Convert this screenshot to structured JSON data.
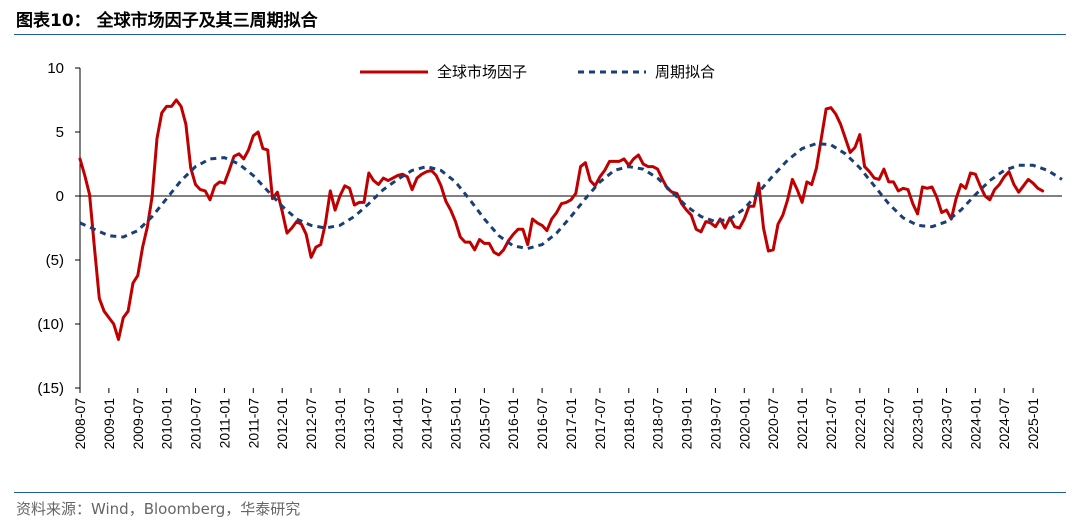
{
  "header": {
    "title": "图表10：  全球市场因子及其三周期拟合"
  },
  "footer": {
    "source": "资料来源：Wind，Bloomberg，华泰研究"
  },
  "chart_data": {
    "type": "line",
    "title": "",
    "xlabel": "",
    "ylabel": "",
    "ylim": [
      -15,
      10
    ],
    "yticks": [
      10,
      5,
      0,
      -5,
      -10,
      -15
    ],
    "ytick_labels": [
      "10",
      "5",
      "0",
      "(5)",
      "(10)",
      "(15)"
    ],
    "xlim": [
      "2008-07",
      "2025-07"
    ],
    "xtick_labels": [
      "2008-07",
      "2009-01",
      "2009-07",
      "2010-01",
      "2010-07",
      "2011-01",
      "2011-07",
      "2012-01",
      "2012-07",
      "2013-01",
      "2013-07",
      "2014-01",
      "2014-07",
      "2015-01",
      "2015-07",
      "2016-01",
      "2016-07",
      "2017-01",
      "2017-07",
      "2018-01",
      "2018-07",
      "2019-01",
      "2019-07",
      "2020-01",
      "2020-07",
      "2021-01",
      "2021-07",
      "2022-01",
      "2022-07",
      "2023-01",
      "2023-07",
      "2024-01",
      "2024-07",
      "2025-01"
    ],
    "legend_position": "top",
    "series": [
      {
        "name": "全球市场因子",
        "color": "#c00000",
        "style": "solid",
        "points": [
          [
            "2008-07",
            2.9
          ],
          [
            "2008-08",
            1.6
          ],
          [
            "2008-09",
            0.1
          ],
          [
            "2008-10",
            -4.0
          ],
          [
            "2008-11",
            -8.0
          ],
          [
            "2008-12",
            -9.0
          ],
          [
            "2009-01",
            -9.5
          ],
          [
            "2009-02",
            -10.0
          ],
          [
            "2009-03",
            -11.2
          ],
          [
            "2009-04",
            -9.5
          ],
          [
            "2009-05",
            -9.0
          ],
          [
            "2009-06",
            -6.8
          ],
          [
            "2009-07",
            -6.2
          ],
          [
            "2009-08",
            -4.0
          ],
          [
            "2009-09",
            -2.4
          ],
          [
            "2009-10",
            0.0
          ],
          [
            "2009-11",
            4.5
          ],
          [
            "2009-12",
            6.5
          ],
          [
            "2010-01",
            7.0
          ],
          [
            "2010-02",
            7.0
          ],
          [
            "2010-03",
            7.5
          ],
          [
            "2010-04",
            7.0
          ],
          [
            "2010-05",
            5.6
          ],
          [
            "2010-06",
            2.2
          ],
          [
            "2010-07",
            0.9
          ],
          [
            "2010-08",
            0.5
          ],
          [
            "2010-09",
            0.4
          ],
          [
            "2010-10",
            -0.3
          ],
          [
            "2010-11",
            0.8
          ],
          [
            "2010-12",
            1.1
          ],
          [
            "2011-01",
            1.0
          ],
          [
            "2011-02",
            2.0
          ],
          [
            "2011-03",
            3.1
          ],
          [
            "2011-04",
            3.3
          ],
          [
            "2011-05",
            2.9
          ],
          [
            "2011-06",
            3.6
          ],
          [
            "2011-07",
            4.7
          ],
          [
            "2011-08",
            5.0
          ],
          [
            "2011-09",
            3.7
          ],
          [
            "2011-10",
            3.6
          ],
          [
            "2011-11",
            -0.2
          ],
          [
            "2011-12",
            0.3
          ],
          [
            "2012-01",
            -1.2
          ],
          [
            "2012-02",
            -2.9
          ],
          [
            "2012-03",
            -2.5
          ],
          [
            "2012-04",
            -2.0
          ],
          [
            "2012-05",
            -2.2
          ],
          [
            "2012-06",
            -3.0
          ],
          [
            "2012-07",
            -4.8
          ],
          [
            "2012-08",
            -4.0
          ],
          [
            "2012-09",
            -3.8
          ],
          [
            "2012-10",
            -2.1
          ],
          [
            "2012-11",
            0.4
          ],
          [
            "2012-12",
            -1.1
          ],
          [
            "2013-01",
            0.0
          ],
          [
            "2013-02",
            0.8
          ],
          [
            "2013-03",
            0.6
          ],
          [
            "2013-04",
            -0.7
          ],
          [
            "2013-05",
            -0.5
          ],
          [
            "2013-06",
            -0.5
          ],
          [
            "2013-07",
            1.8
          ],
          [
            "2013-08",
            1.2
          ],
          [
            "2013-09",
            0.9
          ],
          [
            "2013-10",
            1.4
          ],
          [
            "2013-11",
            1.2
          ],
          [
            "2013-12",
            1.4
          ],
          [
            "2014-01",
            1.6
          ],
          [
            "2014-02",
            1.7
          ],
          [
            "2014-03",
            1.5
          ],
          [
            "2014-04",
            0.5
          ],
          [
            "2014-05",
            1.4
          ],
          [
            "2014-06",
            1.7
          ],
          [
            "2014-07",
            1.9
          ],
          [
            "2014-08",
            2.0
          ],
          [
            "2014-09",
            1.6
          ],
          [
            "2014-10",
            0.8
          ],
          [
            "2014-11",
            -0.4
          ],
          [
            "2014-12",
            -1.1
          ],
          [
            "2015-01",
            -2.0
          ],
          [
            "2015-02",
            -3.2
          ],
          [
            "2015-03",
            -3.6
          ],
          [
            "2015-04",
            -3.6
          ],
          [
            "2015-05",
            -4.2
          ],
          [
            "2015-06",
            -3.4
          ],
          [
            "2015-07",
            -3.7
          ],
          [
            "2015-08",
            -3.7
          ],
          [
            "2015-09",
            -4.4
          ],
          [
            "2015-10",
            -4.6
          ],
          [
            "2015-11",
            -4.2
          ],
          [
            "2015-12",
            -3.5
          ],
          [
            "2016-01",
            -3.0
          ],
          [
            "2016-02",
            -2.6
          ],
          [
            "2016-03",
            -2.6
          ],
          [
            "2016-04",
            -3.8
          ],
          [
            "2016-05",
            -1.8
          ],
          [
            "2016-06",
            -2.1
          ],
          [
            "2016-07",
            -2.3
          ],
          [
            "2016-08",
            -2.7
          ],
          [
            "2016-09",
            -1.8
          ],
          [
            "2016-10",
            -1.3
          ],
          [
            "2016-11",
            -0.6
          ],
          [
            "2016-12",
            -0.5
          ],
          [
            "2017-01",
            -0.3
          ],
          [
            "2017-02",
            0.2
          ],
          [
            "2017-03",
            2.3
          ],
          [
            "2017-04",
            2.6
          ],
          [
            "2017-05",
            1.2
          ],
          [
            "2017-06",
            0.8
          ],
          [
            "2017-07",
            1.5
          ],
          [
            "2017-08",
            2.0
          ],
          [
            "2017-09",
            2.7
          ],
          [
            "2017-10",
            2.7
          ],
          [
            "2017-11",
            2.7
          ],
          [
            "2017-12",
            2.9
          ],
          [
            "2018-01",
            2.4
          ],
          [
            "2018-02",
            2.9
          ],
          [
            "2018-03",
            3.2
          ],
          [
            "2018-04",
            2.5
          ],
          [
            "2018-05",
            2.3
          ],
          [
            "2018-06",
            2.3
          ],
          [
            "2018-07",
            2.1
          ],
          [
            "2018-08",
            1.3
          ],
          [
            "2018-09",
            0.6
          ],
          [
            "2018-10",
            0.3
          ],
          [
            "2018-11",
            0.2
          ],
          [
            "2018-12",
            -0.6
          ],
          [
            "2019-01",
            -1.1
          ],
          [
            "2019-02",
            -1.5
          ],
          [
            "2019-03",
            -2.6
          ],
          [
            "2019-04",
            -2.8
          ],
          [
            "2019-05",
            -2.0
          ],
          [
            "2019-06",
            -2.1
          ],
          [
            "2019-07",
            -2.4
          ],
          [
            "2019-08",
            -1.8
          ],
          [
            "2019-09",
            -2.5
          ],
          [
            "2019-10",
            -1.7
          ],
          [
            "2019-11",
            -2.4
          ],
          [
            "2019-12",
            -2.5
          ],
          [
            "2020-01",
            -1.8
          ],
          [
            "2020-02",
            -0.8
          ],
          [
            "2020-03",
            -0.8
          ],
          [
            "2020-04",
            1.0
          ],
          [
            "2020-05",
            -2.5
          ],
          [
            "2020-06",
            -4.3
          ],
          [
            "2020-07",
            -4.2
          ],
          [
            "2020-08",
            -2.2
          ],
          [
            "2020-09",
            -1.5
          ],
          [
            "2020-10",
            -0.3
          ],
          [
            "2020-11",
            1.3
          ],
          [
            "2020-12",
            0.5
          ],
          [
            "2021-01",
            -0.5
          ],
          [
            "2021-02",
            1.1
          ],
          [
            "2021-03",
            0.9
          ],
          [
            "2021-04",
            2.2
          ],
          [
            "2021-05",
            4.5
          ],
          [
            "2021-06",
            6.8
          ],
          [
            "2021-07",
            6.9
          ],
          [
            "2021-08",
            6.4
          ],
          [
            "2021-09",
            5.6
          ],
          [
            "2021-10",
            4.5
          ],
          [
            "2021-11",
            3.4
          ],
          [
            "2021-12",
            3.8
          ],
          [
            "2022-01",
            4.8
          ],
          [
            "2022-02",
            2.3
          ],
          [
            "2022-03",
            1.9
          ],
          [
            "2022-04",
            1.4
          ],
          [
            "2022-05",
            1.3
          ],
          [
            "2022-06",
            2.1
          ],
          [
            "2022-07",
            1.1
          ],
          [
            "2022-08",
            1.1
          ],
          [
            "2022-09",
            0.4
          ],
          [
            "2022-10",
            0.6
          ],
          [
            "2022-11",
            0.5
          ],
          [
            "2022-12",
            -0.6
          ],
          [
            "2023-01",
            -1.4
          ],
          [
            "2023-02",
            0.7
          ],
          [
            "2023-03",
            0.6
          ],
          [
            "2023-04",
            0.7
          ],
          [
            "2023-05",
            -0.1
          ],
          [
            "2023-06",
            -1.3
          ],
          [
            "2023-07",
            -1.1
          ],
          [
            "2023-08",
            -1.8
          ],
          [
            "2023-09",
            -0.2
          ],
          [
            "2023-10",
            0.9
          ],
          [
            "2023-11",
            0.6
          ],
          [
            "2023-12",
            1.8
          ],
          [
            "2024-01",
            1.7
          ],
          [
            "2024-02",
            0.8
          ],
          [
            "2024-03",
            0.0
          ],
          [
            "2024-04",
            -0.3
          ],
          [
            "2024-05",
            0.5
          ],
          [
            "2024-06",
            0.9
          ],
          [
            "2024-07",
            1.5
          ],
          [
            "2024-08",
            1.9
          ],
          [
            "2024-09",
            0.9
          ],
          [
            "2024-10",
            0.3
          ],
          [
            "2024-11",
            0.8
          ],
          [
            "2024-12",
            1.3
          ],
          [
            "2025-01",
            1.0
          ],
          [
            "2025-02",
            0.6
          ],
          [
            "2025-03",
            0.4
          ]
        ]
      },
      {
        "name": "周期拟合",
        "color": "#1a3f74",
        "style": "dashed",
        "points": [
          [
            "2008-07",
            -2.1
          ],
          [
            "2008-10",
            -2.6
          ],
          [
            "2009-01",
            -3.1
          ],
          [
            "2009-04",
            -3.2
          ],
          [
            "2009-07",
            -2.7
          ],
          [
            "2009-10",
            -1.6
          ],
          [
            "2010-01",
            -0.2
          ],
          [
            "2010-04",
            1.2
          ],
          [
            "2010-07",
            2.3
          ],
          [
            "2010-10",
            2.9
          ],
          [
            "2011-01",
            3.0
          ],
          [
            "2011-04",
            2.5
          ],
          [
            "2011-07",
            1.6
          ],
          [
            "2011-10",
            0.4
          ],
          [
            "2012-01",
            -0.8
          ],
          [
            "2012-04",
            -1.8
          ],
          [
            "2012-07",
            -2.3
          ],
          [
            "2012-10",
            -2.5
          ],
          [
            "2013-01",
            -2.3
          ],
          [
            "2013-04",
            -1.6
          ],
          [
            "2013-07",
            -0.6
          ],
          [
            "2013-10",
            0.5
          ],
          [
            "2014-01",
            1.3
          ],
          [
            "2014-04",
            2.0
          ],
          [
            "2014-07",
            2.3
          ],
          [
            "2014-10",
            2.0
          ],
          [
            "2015-01",
            1.1
          ],
          [
            "2015-04",
            -0.3
          ],
          [
            "2015-07",
            -1.8
          ],
          [
            "2015-10",
            -3.1
          ],
          [
            "2016-01",
            -3.9
          ],
          [
            "2016-04",
            -4.1
          ],
          [
            "2016-07",
            -3.8
          ],
          [
            "2016-10",
            -2.9
          ],
          [
            "2017-01",
            -1.6
          ],
          [
            "2017-04",
            -0.2
          ],
          [
            "2017-07",
            1.1
          ],
          [
            "2017-10",
            2.0
          ],
          [
            "2018-01",
            2.3
          ],
          [
            "2018-04",
            2.1
          ],
          [
            "2018-07",
            1.4
          ],
          [
            "2018-10",
            0.3
          ],
          [
            "2019-01",
            -0.8
          ],
          [
            "2019-04",
            -1.6
          ],
          [
            "2019-07",
            -2.0
          ],
          [
            "2019-10",
            -1.8
          ],
          [
            "2020-01",
            -1.0
          ],
          [
            "2020-04",
            0.3
          ],
          [
            "2020-07",
            1.6
          ],
          [
            "2020-10",
            2.8
          ],
          [
            "2021-01",
            3.7
          ],
          [
            "2021-04",
            4.1
          ],
          [
            "2021-07",
            4.0
          ],
          [
            "2021-10",
            3.3
          ],
          [
            "2022-01",
            2.2
          ],
          [
            "2022-04",
            0.8
          ],
          [
            "2022-07",
            -0.6
          ],
          [
            "2022-10",
            -1.7
          ],
          [
            "2023-01",
            -2.3
          ],
          [
            "2023-04",
            -2.4
          ],
          [
            "2023-07",
            -2.0
          ],
          [
            "2023-10",
            -1.1
          ],
          [
            "2024-01",
            0.1
          ],
          [
            "2024-04",
            1.2
          ],
          [
            "2024-07",
            2.0
          ],
          [
            "2024-10",
            2.4
          ],
          [
            "2025-01",
            2.4
          ],
          [
            "2025-04",
            2.0
          ],
          [
            "2025-07",
            1.3
          ]
        ]
      }
    ]
  }
}
